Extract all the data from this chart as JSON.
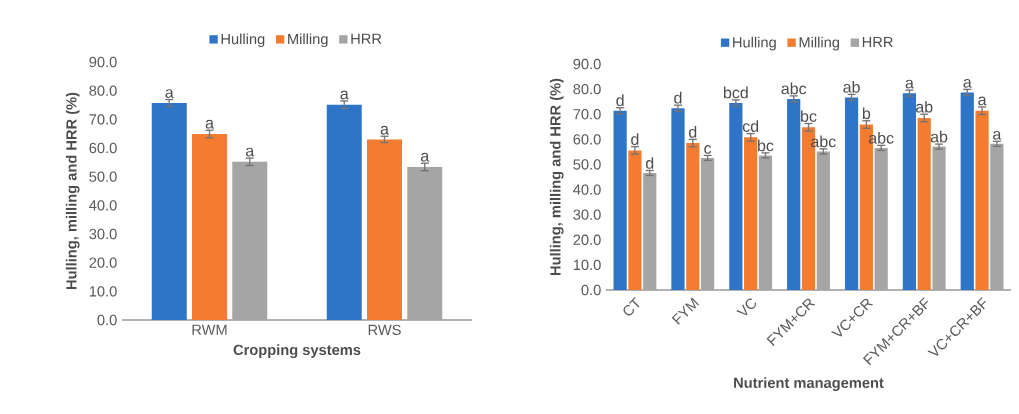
{
  "chart_data": [
    {
      "type": "bar",
      "xlabel": "Cropping systems",
      "ylabel": "Hulling, milling and HRR (%)",
      "categories": [
        "RWM",
        "RWS"
      ],
      "ylim": [
        0,
        90
      ],
      "yticks": [
        {
          "value": 0,
          "label": "0.0"
        },
        {
          "value": 10,
          "label": "10.0"
        },
        {
          "value": 20,
          "label": "20.0"
        },
        {
          "value": 30,
          "label": "30.0"
        },
        {
          "value": 40,
          "label": "40.0"
        },
        {
          "value": 50,
          "label": "50.0"
        },
        {
          "value": 60,
          "label": "60.0"
        },
        {
          "value": 70,
          "label": "70.0"
        },
        {
          "value": 80,
          "label": "80.0"
        },
        {
          "value": 90,
          "label": "90.0"
        }
      ],
      "legend": "top",
      "grid": false,
      "series": [
        {
          "name": "Hulling",
          "color": "#2e75c8",
          "values": [
            75.7,
            75.1
          ],
          "errors": [
            1.2,
            1.3
          ],
          "value_labels": [
            "a",
            "a"
          ]
        },
        {
          "name": "Milling",
          "color": "#f47c30",
          "values": [
            64.9,
            63.0
          ],
          "errors": [
            1.3,
            1.1
          ],
          "value_labels": [
            "a",
            "a"
          ]
        },
        {
          "name": "HRR",
          "color": "#a5a5a5",
          "values": [
            55.2,
            53.4
          ],
          "errors": [
            1.3,
            1.3
          ],
          "value_labels": [
            "a",
            "a"
          ]
        }
      ]
    },
    {
      "type": "bar",
      "xlabel": "Nutrient management",
      "ylabel": "Hulling, milling and HRR (%)",
      "categories": [
        "CT",
        "FYM",
        "VC",
        "FYM+CR",
        "VC+CR",
        "FYM+CR+BF",
        "VC+CR+BF"
      ],
      "ylim": [
        0,
        90
      ],
      "yticks": [
        {
          "value": 0,
          "label": "0.0"
        },
        {
          "value": 10,
          "label": "10.0"
        },
        {
          "value": 20,
          "label": "20.0"
        },
        {
          "value": 30,
          "label": "30.0"
        },
        {
          "value": 40,
          "label": "40.0"
        },
        {
          "value": 50,
          "label": "50.0"
        },
        {
          "value": 60,
          "label": "60.0"
        },
        {
          "value": 70,
          "label": "70.0"
        },
        {
          "value": 80,
          "label": "80.0"
        },
        {
          "value": 90,
          "label": "90.0"
        }
      ],
      "legend": "top",
      "grid": false,
      "series": [
        {
          "name": "Hulling",
          "color": "#2e75c8",
          "values": [
            71.4,
            72.4,
            74.5,
            76.1,
            76.7,
            78.4,
            78.7
          ],
          "errors": [
            1.2,
            1.2,
            1.2,
            1.2,
            1.2,
            1.2,
            1.2
          ],
          "value_labels": [
            "d",
            "d",
            "bcd",
            "abc",
            "ab",
            "a",
            "a"
          ]
        },
        {
          "name": "Milling",
          "color": "#f47c30",
          "values": [
            55.6,
            58.5,
            60.8,
            64.8,
            65.9,
            68.5,
            71.4
          ],
          "errors": [
            1.5,
            1.5,
            1.5,
            1.5,
            1.5,
            1.5,
            1.5
          ],
          "value_labels": [
            "d",
            "d",
            "cd",
            "bc",
            "b",
            "ab",
            "a"
          ]
        },
        {
          "name": "HRR",
          "color": "#a5a5a5",
          "values": [
            46.6,
            52.6,
            53.6,
            55.2,
            56.6,
            57.1,
            58.2
          ],
          "errors": [
            1.0,
            1.0,
            1.0,
            1.0,
            1.0,
            1.0,
            1.0
          ],
          "value_labels": [
            "d",
            "c",
            "bc",
            "abc",
            "abc",
            "ab",
            "a"
          ]
        }
      ]
    }
  ]
}
